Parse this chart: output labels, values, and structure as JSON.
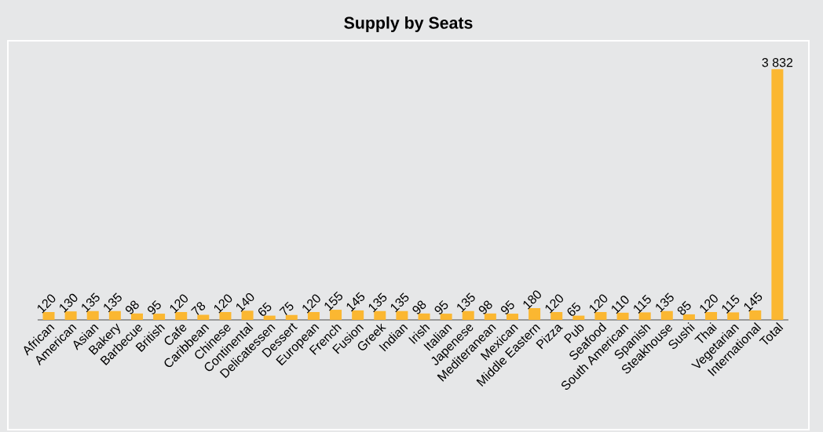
{
  "chart_data": {
    "type": "bar",
    "title": "Supply by Seats",
    "categories": [
      "African",
      "American",
      "Asian",
      "Bakery",
      "Barbecue",
      "British",
      "Cafe",
      "Caribbean",
      "Chinese",
      "Continental",
      "Delicatessen",
      "Dessert",
      "European",
      "French",
      "Fusion",
      "Greek",
      "Indian",
      "Irish",
      "Italian",
      "Japenese",
      "Mediteranean",
      "Mexican",
      "Middle Eastern",
      "Pizza",
      "Pub",
      "Seafood",
      "South American",
      "Spanish",
      "Steakhouse",
      "Sushi",
      "Thai",
      "Vegetarian",
      "International",
      "Total"
    ],
    "values": [
      120,
      130,
      135,
      135,
      98,
      95,
      120,
      78,
      120,
      140,
      65,
      75,
      120,
      155,
      145,
      135,
      135,
      98,
      95,
      135,
      98,
      95,
      180,
      120,
      65,
      120,
      110,
      115,
      135,
      85,
      120,
      115,
      145,
      3832
    ],
    "value_labels": [
      "120",
      "130",
      "135",
      "135",
      "98",
      "95",
      "120",
      "78",
      "120",
      "140",
      "65",
      "75",
      "120",
      "155",
      "145",
      "135",
      "135",
      "98",
      "95",
      "135",
      "98",
      "95",
      "180",
      "120",
      "65",
      "120",
      "110",
      "115",
      "135",
      "85",
      "120",
      "115",
      "145",
      "3 832"
    ],
    "color": "#fbb731"
  }
}
